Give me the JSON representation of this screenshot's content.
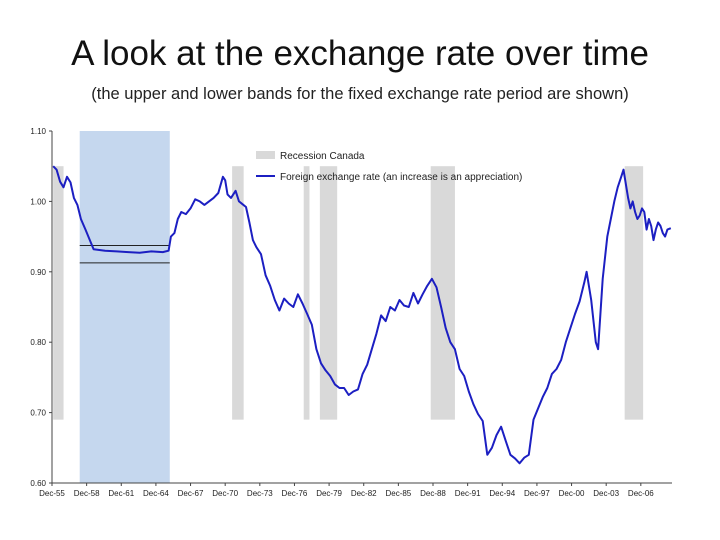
{
  "title": "A look at the exchange rate over time",
  "subtitle": "(the upper and lower bands for the fixed exchange rate period are shown)",
  "colors": {
    "line": "#1c1fc2",
    "recession": "#d9d9d9",
    "fixed_period": "#c5d7ee",
    "bands": "#222222",
    "axis": "#444444"
  },
  "chart_data": {
    "type": "line",
    "title": "A look at the exchange rate over time",
    "ylim": [
      0.6,
      1.1
    ],
    "xlim": [
      1955.9,
      2009.6
    ],
    "y_ticks": [
      {
        "value": 1.1,
        "label": "1.10"
      },
      {
        "value": 1.0,
        "label": "1.00"
      },
      {
        "value": 0.9,
        "label": "0.90"
      },
      {
        "value": 0.8,
        "label": "0.80"
      },
      {
        "value": 0.7,
        "label": "0.70"
      },
      {
        "value": 0.6,
        "label": "0.60"
      }
    ],
    "x_ticks": [
      {
        "value": 1955.9,
        "label": "Dec-55"
      },
      {
        "value": 1958.9,
        "label": "Dec-58"
      },
      {
        "value": 1961.9,
        "label": "Dec-61"
      },
      {
        "value": 1964.9,
        "label": "Dec-64"
      },
      {
        "value": 1967.9,
        "label": "Dec-67"
      },
      {
        "value": 1970.9,
        "label": "Dec-70"
      },
      {
        "value": 1973.9,
        "label": "Dec-73"
      },
      {
        "value": 1976.9,
        "label": "Dec-76"
      },
      {
        "value": 1979.9,
        "label": "Dec-79"
      },
      {
        "value": 1982.9,
        "label": "Dec-82"
      },
      {
        "value": 1985.9,
        "label": "Dec-85"
      },
      {
        "value": 1988.9,
        "label": "Dec-88"
      },
      {
        "value": 1991.9,
        "label": "Dec-91"
      },
      {
        "value": 1994.9,
        "label": "Dec-94"
      },
      {
        "value": 1997.9,
        "label": "Dec-97"
      },
      {
        "value": 2000.9,
        "label": "Dec-00"
      },
      {
        "value": 2003.9,
        "label": "Dec-03"
      },
      {
        "value": 2006.9,
        "label": "Dec-06"
      }
    ],
    "legend": {
      "position": "top-right",
      "recession_label": "Recession Canada",
      "line_label": "Foreign exchange rate (an increase is an appreciation)"
    },
    "recessions": [
      {
        "start": 1956.0,
        "end": 1956.9,
        "low": 0.69,
        "high": 1.05
      },
      {
        "start": 1971.5,
        "end": 1972.5,
        "low": 0.69,
        "high": 1.05
      },
      {
        "start": 1977.7,
        "end": 1978.2,
        "low": 0.69,
        "high": 1.05
      },
      {
        "start": 1979.1,
        "end": 1980.6,
        "low": 0.69,
        "high": 1.05
      },
      {
        "start": 1988.7,
        "end": 1990.8,
        "low": 0.69,
        "high": 1.05
      },
      {
        "start": 2005.5,
        "end": 2007.1,
        "low": 0.69,
        "high": 1.05
      }
    ],
    "fixed_period": {
      "start": 1958.3,
      "end": 1966.1,
      "low": 0.6,
      "high": 1.1
    },
    "fixed_bands": {
      "start": 1958.3,
      "end": 1966.1,
      "upper": 0.9374,
      "lower": 0.9127
    },
    "series": [
      {
        "name": "Foreign exchange rate (an increase is an appreciation)",
        "x": [
          1956.0,
          1956.3,
          1956.6,
          1956.9,
          1957.2,
          1957.5,
          1957.8,
          1958.1,
          1958.4,
          1958.8,
          1959.5,
          1960.5,
          1961.5,
          1962.5,
          1963.5,
          1964.5,
          1965.5,
          1966.0,
          1966.2,
          1966.5,
          1966.8,
          1967.1,
          1967.5,
          1967.9,
          1968.3,
          1968.7,
          1969.1,
          1969.5,
          1969.9,
          1970.3,
          1970.7,
          1970.9,
          1971.1,
          1971.4,
          1971.8,
          1972.1,
          1972.4,
          1972.7,
          1973.0,
          1973.3,
          1973.6,
          1974.0,
          1974.4,
          1974.8,
          1975.2,
          1975.6,
          1976.0,
          1976.4,
          1976.8,
          1977.2,
          1977.6,
          1978.0,
          1978.4,
          1978.8,
          1979.2,
          1979.6,
          1980.0,
          1980.4,
          1980.8,
          1981.2,
          1981.6,
          1982.0,
          1982.4,
          1982.8,
          1983.2,
          1983.6,
          1984.0,
          1984.4,
          1984.8,
          1985.2,
          1985.6,
          1986.0,
          1986.4,
          1986.8,
          1987.2,
          1987.6,
          1988.0,
          1988.4,
          1988.8,
          1989.2,
          1989.6,
          1990.0,
          1990.4,
          1990.8,
          1991.2,
          1991.6,
          1992.0,
          1992.4,
          1992.8,
          1993.2,
          1993.6,
          1994.0,
          1994.4,
          1994.8,
          1995.2,
          1995.6,
          1996.0,
          1996.4,
          1996.8,
          1997.2,
          1997.6,
          1998.0,
          1998.4,
          1998.8,
          1999.2,
          1999.6,
          2000.0,
          2000.4,
          2000.8,
          2001.2,
          2001.6,
          2002.0,
          2002.2,
          2002.4,
          2002.6,
          2002.8,
          2003.0,
          2003.2,
          2003.4,
          2003.6,
          2003.8,
          2004.0,
          2004.3,
          2004.6,
          2004.9,
          2005.2,
          2005.4,
          2005.6,
          2005.8,
          2006.0,
          2006.2,
          2006.4,
          2006.6,
          2006.8,
          2007.0,
          2007.2,
          2007.4,
          2007.6,
          2007.8,
          2008.0,
          2008.2,
          2008.4,
          2008.6,
          2008.8,
          2009.0,
          2009.2,
          2009.5
        ],
        "y": [
          1.05,
          1.045,
          1.028,
          1.02,
          1.035,
          1.027,
          1.005,
          0.995,
          0.975,
          0.96,
          0.932,
          0.93,
          0.929,
          0.928,
          0.927,
          0.929,
          0.928,
          0.93,
          0.95,
          0.955,
          0.975,
          0.985,
          0.982,
          0.99,
          1.003,
          1.0,
          0.995,
          1.0,
          1.005,
          1.012,
          1.035,
          1.03,
          1.01,
          1.005,
          1.015,
          1.0,
          0.996,
          0.992,
          0.97,
          0.945,
          0.935,
          0.925,
          0.895,
          0.88,
          0.86,
          0.845,
          0.862,
          0.855,
          0.85,
          0.868,
          0.855,
          0.84,
          0.825,
          0.79,
          0.77,
          0.76,
          0.752,
          0.74,
          0.735,
          0.735,
          0.725,
          0.73,
          0.733,
          0.755,
          0.768,
          0.79,
          0.812,
          0.838,
          0.83,
          0.85,
          0.845,
          0.86,
          0.852,
          0.85,
          0.87,
          0.855,
          0.868,
          0.88,
          0.89,
          0.878,
          0.85,
          0.82,
          0.8,
          0.79,
          0.762,
          0.752,
          0.73,
          0.712,
          0.698,
          0.688,
          0.64,
          0.65,
          0.668,
          0.68,
          0.66,
          0.64,
          0.635,
          0.628,
          0.636,
          0.64,
          0.69,
          0.706,
          0.722,
          0.735,
          0.755,
          0.762,
          0.775,
          0.8,
          0.82,
          0.84,
          0.858,
          0.885,
          0.9,
          0.88,
          0.86,
          0.83,
          0.8,
          0.79,
          0.84,
          0.89,
          0.92,
          0.95,
          0.975,
          1.0,
          1.02,
          1.035,
          1.045,
          1.025,
          1.005,
          0.99,
          1.0,
          0.985,
          0.975,
          0.98,
          0.99,
          0.985,
          0.96,
          0.975,
          0.965,
          0.945,
          0.96,
          0.97,
          0.965,
          0.955,
          0.95,
          0.96,
          0.962
        ]
      }
    ]
  }
}
